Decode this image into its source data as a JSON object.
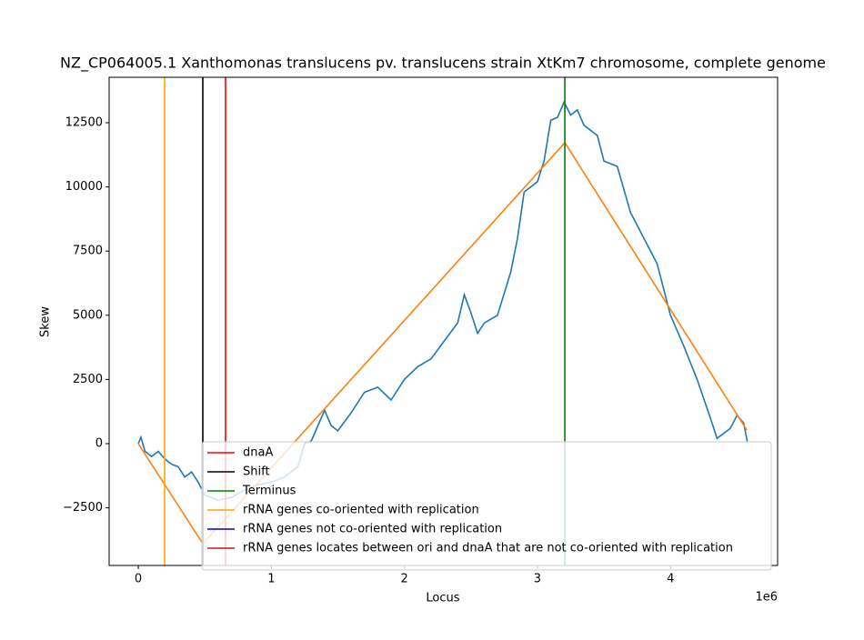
{
  "chart_data": {
    "type": "line",
    "title": "NZ_CP064005.1 Xanthomonas translucens pv. translucens strain XtKm7 chromosome, complete genome",
    "x_label": "Locus",
    "y_label": "Skew",
    "x_offset_label": "1e6",
    "xlim": [
      -219000,
      4805000
    ],
    "ylim": [
      -4745,
      14270
    ],
    "xticks": [
      {
        "value": 0,
        "label": "0"
      },
      {
        "value": 1000000,
        "label": "1"
      },
      {
        "value": 2000000,
        "label": "2"
      },
      {
        "value": 3000000,
        "label": "3"
      },
      {
        "value": 4000000,
        "label": "4"
      }
    ],
    "yticks": [
      {
        "value": -2500,
        "label": "−2500"
      },
      0,
      2500,
      5000,
      7500,
      10000,
      12500
    ],
    "series": [
      {
        "color": "#1f77b4",
        "x": [
          0,
          20000,
          50000,
          100000,
          150000,
          200000,
          250000,
          300000,
          350000,
          400000,
          450000,
          500000,
          600000,
          700000,
          800000,
          900000,
          1000000,
          1100000,
          1200000,
          1250000,
          1300000,
          1400000,
          1450000,
          1500000,
          1600000,
          1700000,
          1800000,
          1900000,
          2000000,
          2100000,
          2200000,
          2300000,
          2400000,
          2450000,
          2500000,
          2550000,
          2600000,
          2700000,
          2800000,
          2850000,
          2900000,
          3000000,
          3050000,
          3100000,
          3150000,
          3200000,
          3250000,
          3300000,
          3350000,
          3450000,
          3500000,
          3600000,
          3700000,
          3800000,
          3900000,
          4000000,
          4100000,
          4200000,
          4300000,
          4350000,
          4450000,
          4500000,
          4550000,
          4580000
        ],
        "values": [
          0,
          250,
          -300,
          -500,
          -300,
          -600,
          -800,
          -900,
          -1300,
          -1100,
          -1500,
          -2000,
          -2200,
          -2100,
          -1800,
          -1600,
          -1500,
          -1300,
          -900,
          0,
          100,
          1300,
          700,
          500,
          1200,
          2000,
          2200,
          1700,
          2500,
          3000,
          3300,
          4000,
          4700,
          5800,
          5100,
          4300,
          4700,
          5000,
          6700,
          8000,
          9800,
          10200,
          11000,
          12600,
          12700,
          13300,
          12800,
          13000,
          12400,
          12000,
          11000,
          10800,
          9000,
          8000,
          7000,
          5000,
          3800,
          2500,
          1000,
          200,
          600,
          1100,
          800,
          0
        ]
      },
      {
        "color": "#ff7f0e",
        "x": [
          0,
          485000,
          3206000,
          4573000
        ],
        "values": [
          0,
          -3895,
          11720,
          531
        ]
      }
    ],
    "vlines": [
      {
        "name": "dnaA",
        "color": "#ff0000",
        "x": [
          656000
        ]
      },
      {
        "name": "Shift",
        "color": "#000000",
        "x": [
          485000
        ]
      },
      {
        "name": "Terminus",
        "color": "#008000",
        "x": [
          3206000
        ]
      },
      {
        "name": "rRNA genes co-oriented with replication",
        "color": "#ffa500",
        "x": [
          198000
        ]
      },
      {
        "name": "rRNA genes not co-oriented with replication",
        "color": "#0000cd",
        "x": []
      },
      {
        "name": "rRNA genes locates between ori and dnaA that are not co-oriented with replication",
        "color": "#b22222",
        "x": []
      }
    ]
  }
}
